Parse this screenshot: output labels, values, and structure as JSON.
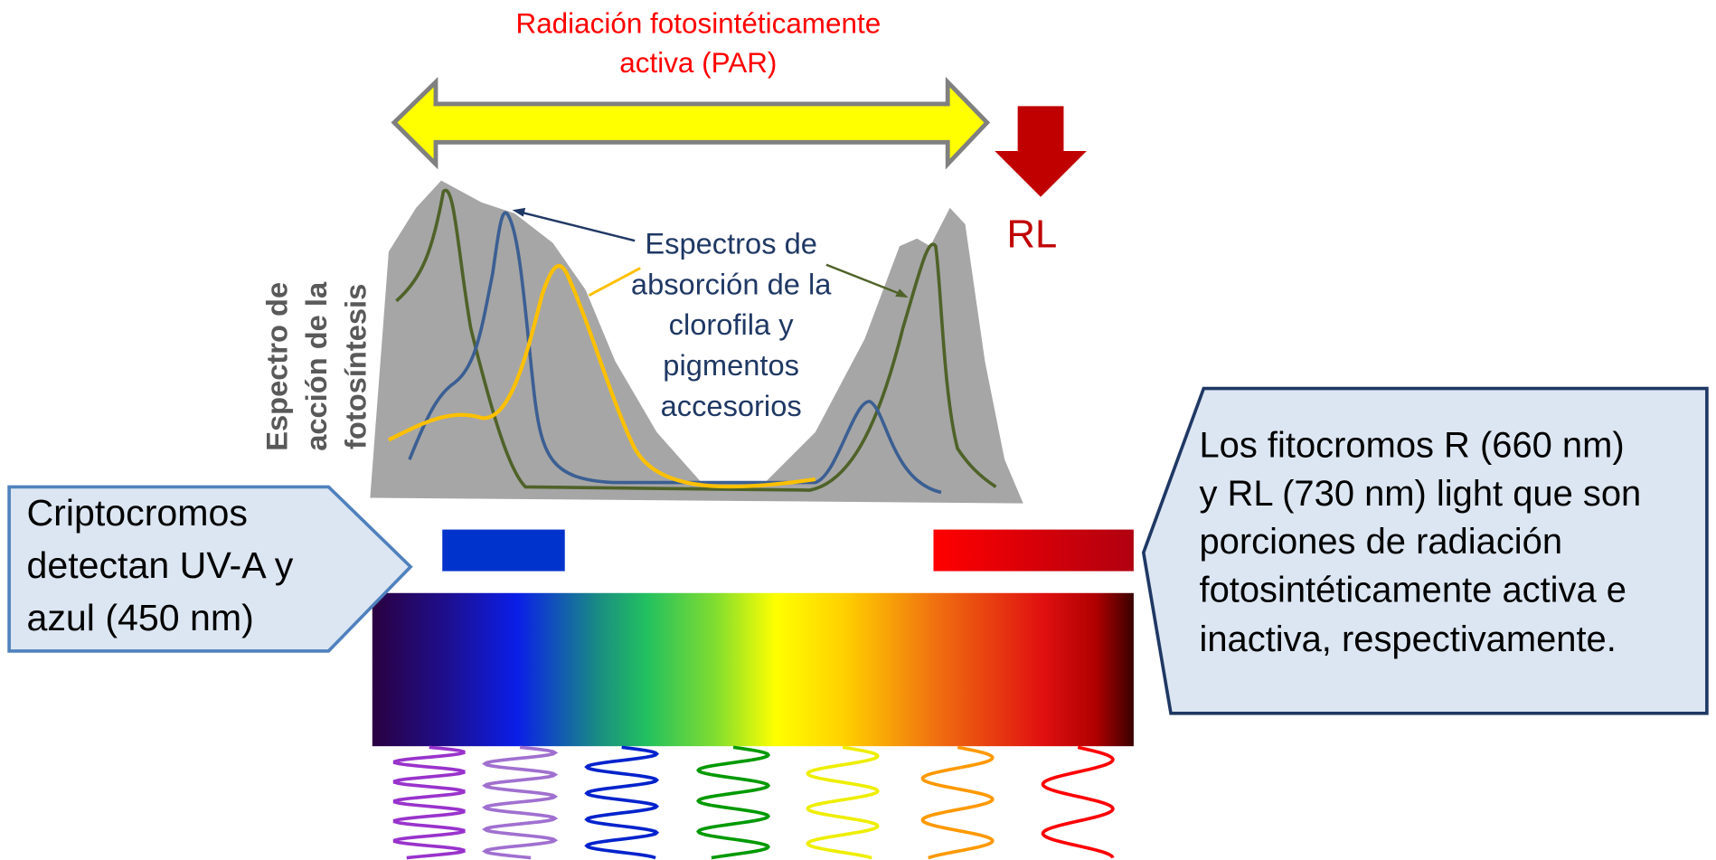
{
  "par_label": [
    "Radiación fotosintéticamente",
    "activa (PAR)"
  ],
  "rl_label": "RL",
  "action_spectrum_label": [
    "Espectro de",
    "acción de la",
    "fotosíntesis"
  ],
  "absorption_label": [
    "Espectros de",
    "absorción de la",
    "clorofila y",
    "pigmentos",
    "accesorios"
  ],
  "cryptochrome_callout": [
    "Criptocromos",
    "detectan UV-A y",
    "azul (450 nm)"
  ],
  "phytochrome_callout": [
    "Los fitocromos R (660 nm)",
    "y RL (730 nm) light que son",
    "porciones de radiación",
    "fotosintéticamente activa e",
    "inactiva, respectivamente."
  ]
}
